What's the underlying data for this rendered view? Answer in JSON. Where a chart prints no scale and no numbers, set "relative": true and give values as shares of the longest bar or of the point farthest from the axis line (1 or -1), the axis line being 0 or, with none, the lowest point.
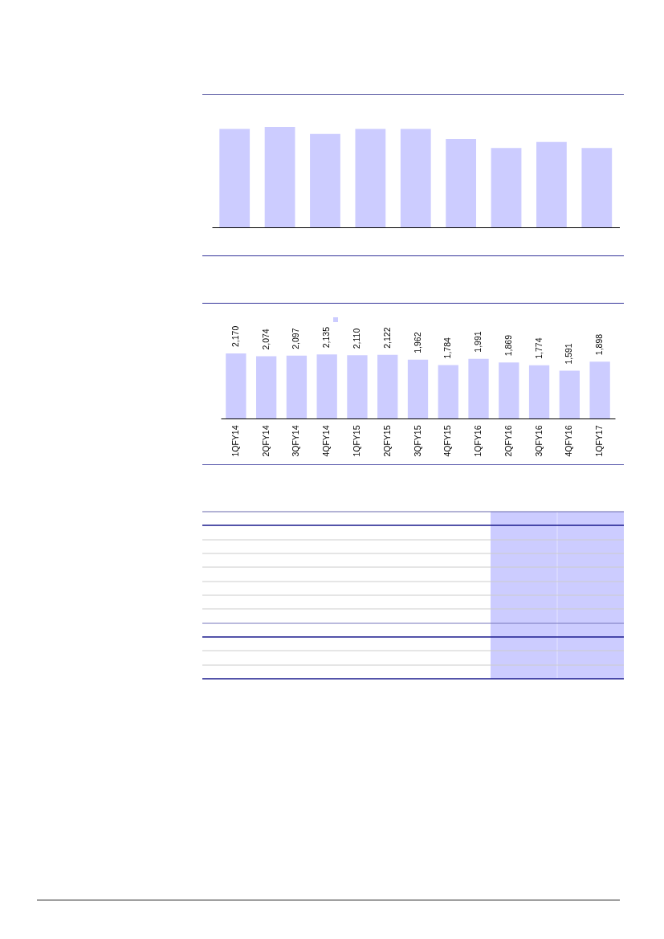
{
  "chart_data": [
    {
      "type": "bar",
      "categories": [
        null,
        null,
        null,
        null,
        null,
        null,
        null,
        null,
        null
      ],
      "values": [
        0.98,
        1,
        0.93,
        0.98,
        0.98,
        0.88,
        0.79,
        0.85,
        0.79
      ],
      "color": "#ccccff",
      "relative": true,
      "tick_labels": false
    },
    {
      "type": "bar",
      "categories": [
        "1QFY14",
        "2QFY14",
        "3QFY14",
        "4QFY14",
        "1QFY15",
        "2QFY15",
        "3QFY15",
        "4QFY15",
        "1QFY16",
        "2QFY16",
        "3QFY16",
        "4QFY16",
        "1QFY17"
      ],
      "values": [
        2170,
        2074,
        2097,
        2135,
        2110,
        2122,
        1962,
        1784,
        1991,
        1869,
        1774,
        1591,
        1898
      ],
      "value_labels": [
        "2,170",
        "2,074",
        "2,097",
        "2,135",
        "2,110",
        "2,122",
        "1,962",
        "1,784",
        "1,991",
        "1,869",
        "1,774",
        "1,591",
        "1,898"
      ],
      "color": "#ccccff",
      "tick_labels": "x"
    }
  ]
}
